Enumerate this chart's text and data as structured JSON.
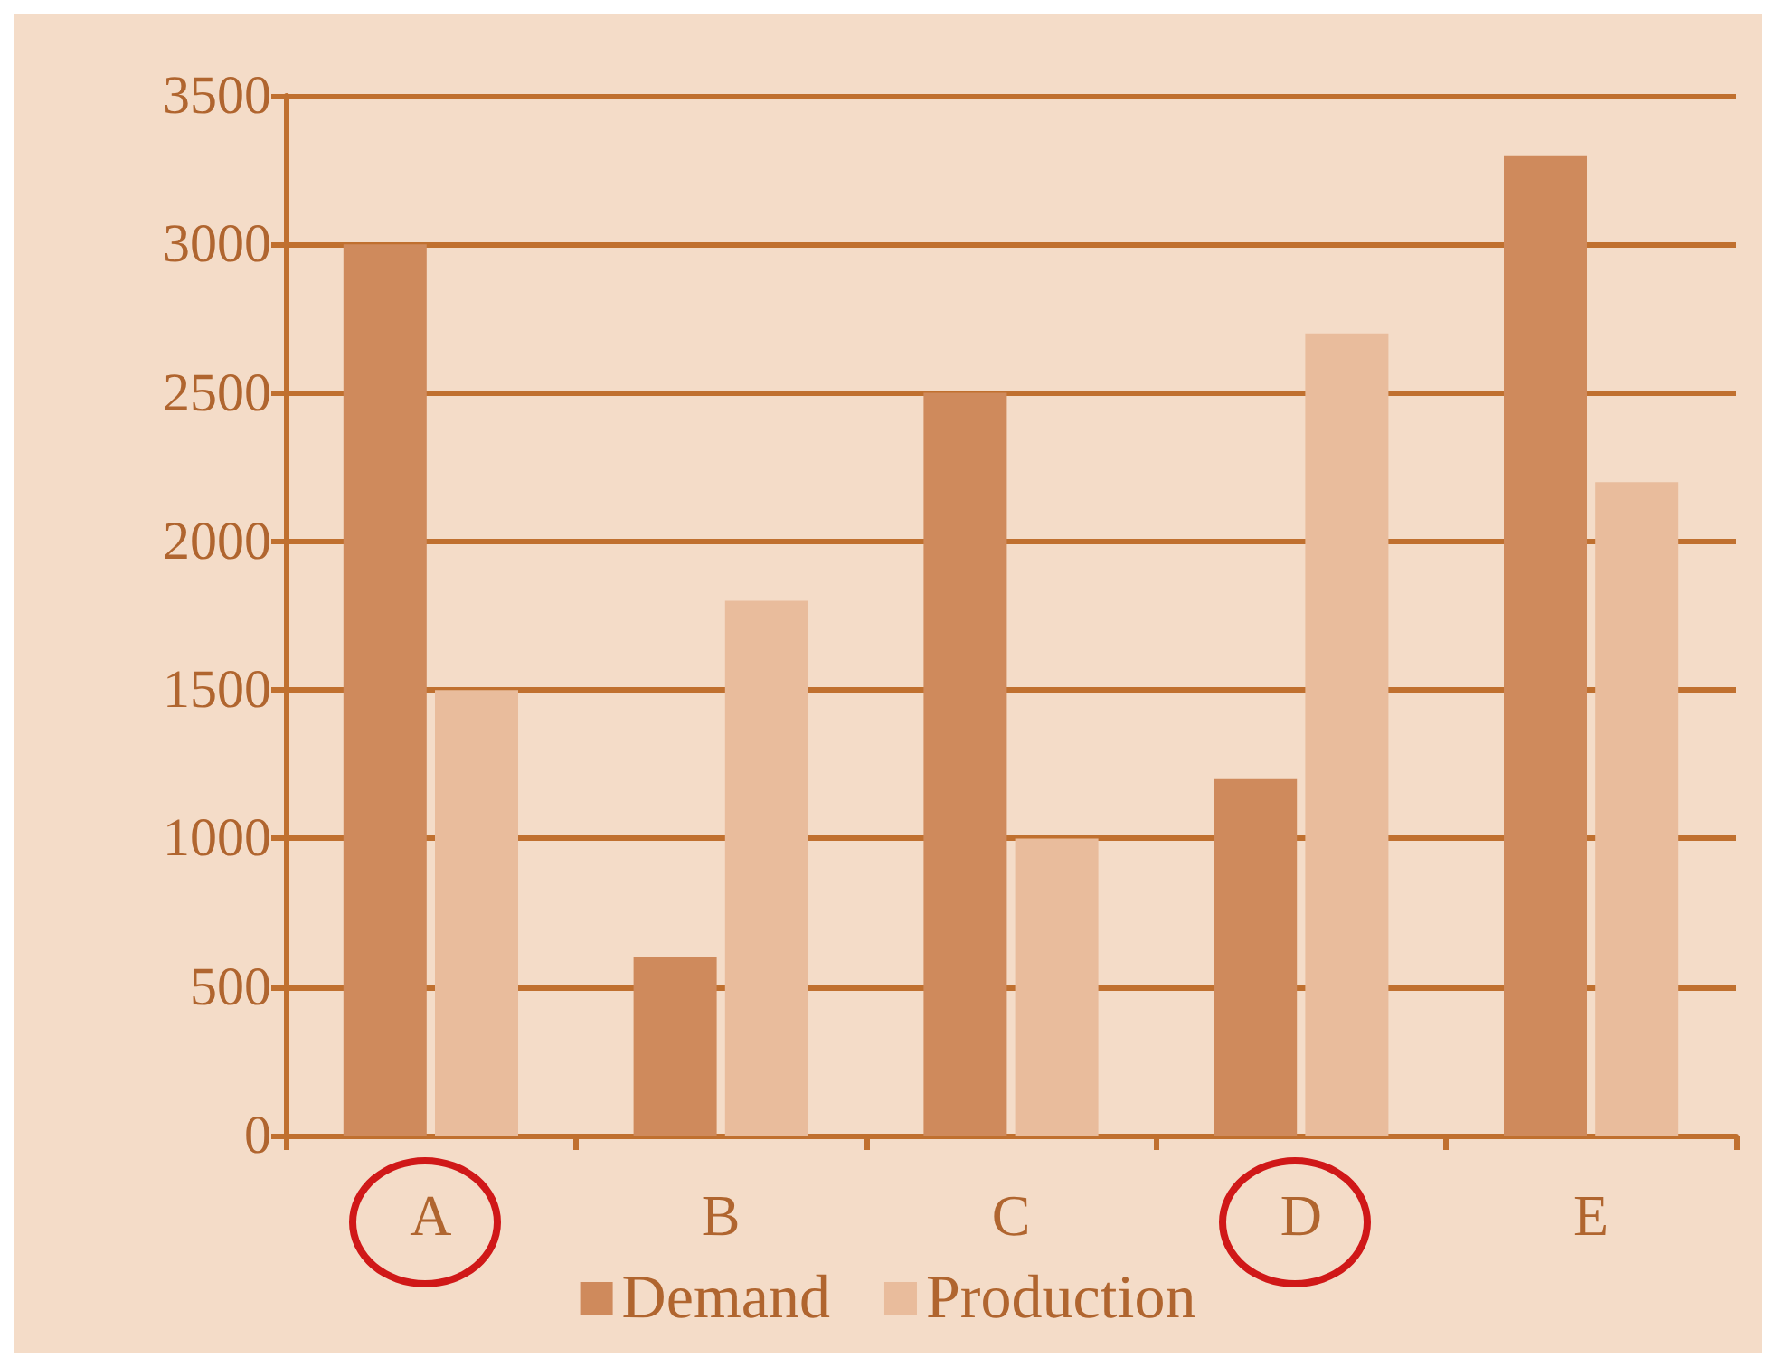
{
  "chart_data": {
    "type": "bar",
    "categories": [
      "A",
      "B",
      "C",
      "D",
      "E"
    ],
    "series": [
      {
        "name": "Demand",
        "color": "#cf8a5c",
        "values": [
          3000,
          600,
          2500,
          1200,
          3300
        ]
      },
      {
        "name": "Production",
        "color": "#e9bc9c",
        "values": [
          1500,
          1800,
          1000,
          2700,
          2200
        ]
      }
    ],
    "ylim": [
      0,
      3500
    ],
    "yticks": [
      0,
      500,
      1000,
      1500,
      2000,
      2500,
      3000,
      3500
    ],
    "grid": "y",
    "legend": "bottom"
  }
}
